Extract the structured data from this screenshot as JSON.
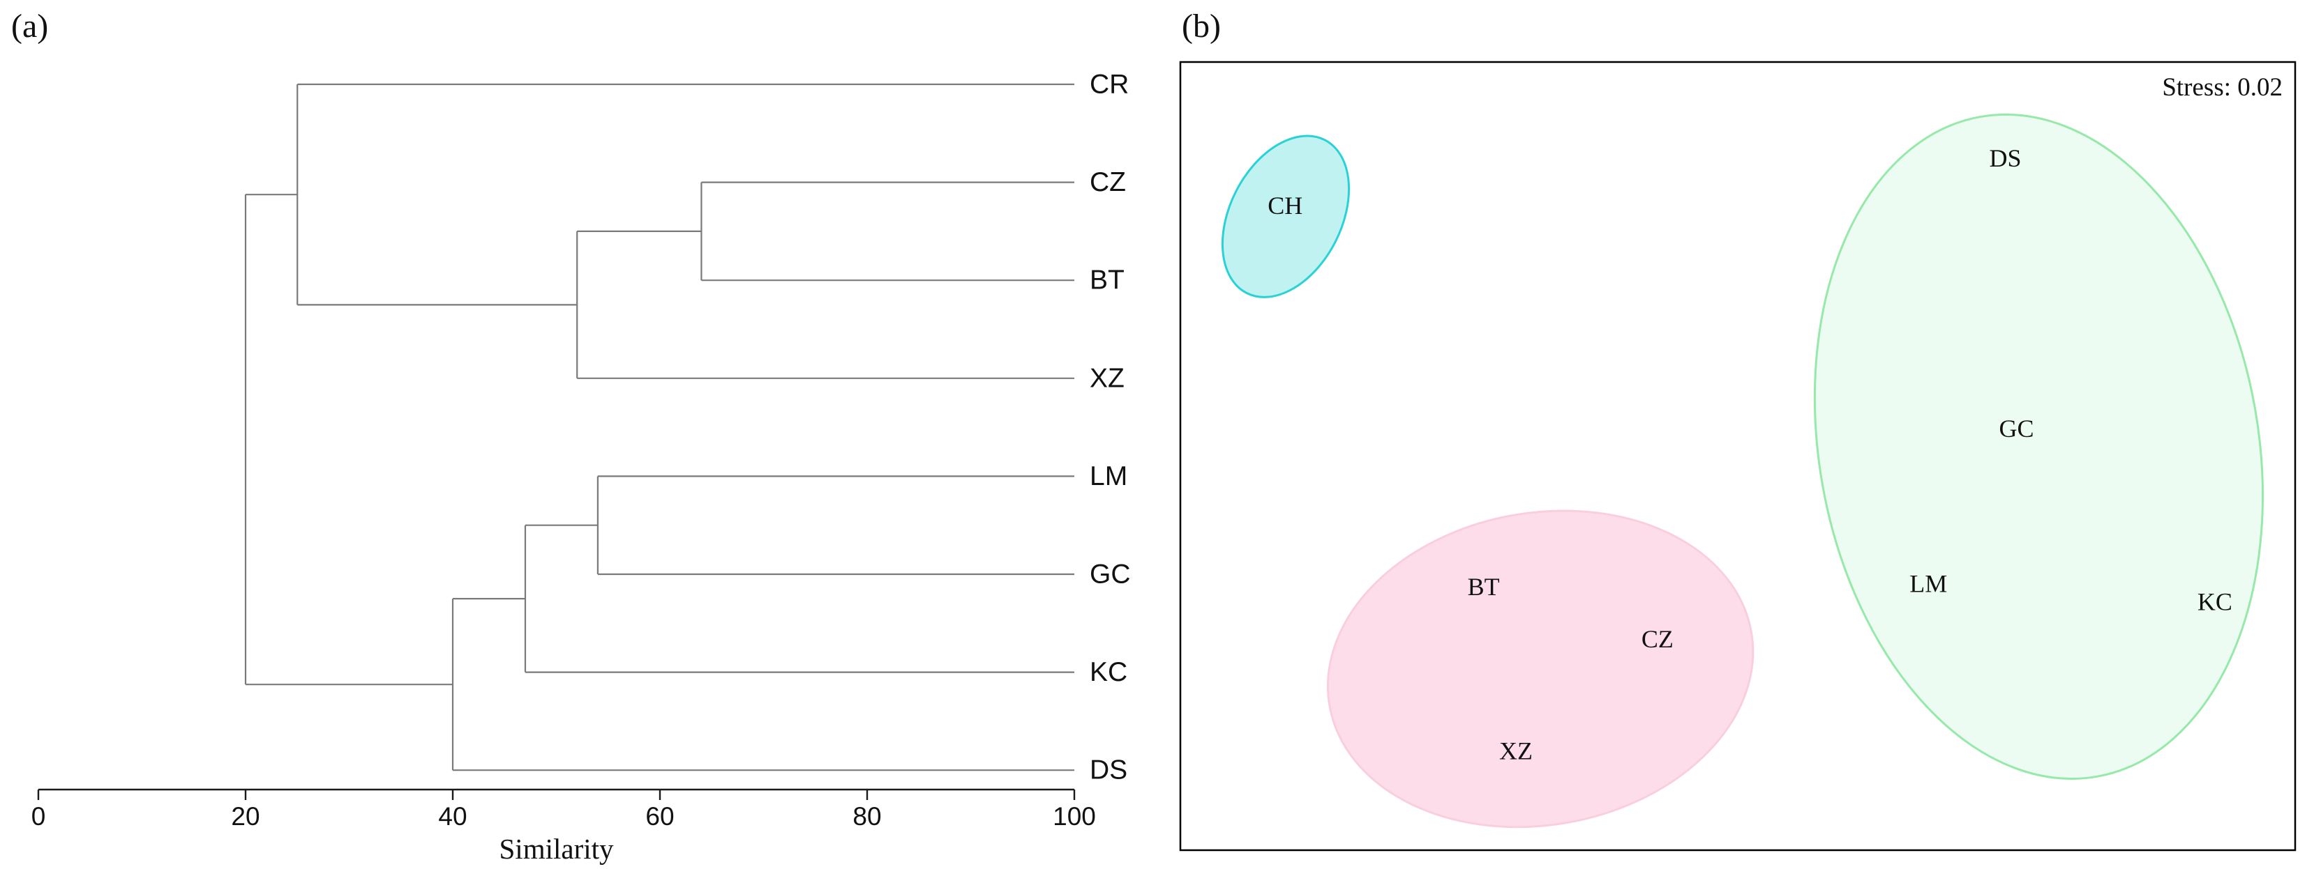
{
  "figure": {
    "panel_a_label": "(a)",
    "panel_b_label": "(b)"
  },
  "chart_data": [
    {
      "type": "dendrogram",
      "panel": "a",
      "orientation": "horizontal, leaves on right, root on left",
      "leaves": [
        "CR",
        "CZ",
        "BT",
        "XZ",
        "LM",
        "GC",
        "KC",
        "DS"
      ],
      "merges": [
        {
          "id": "n1",
          "children": [
            "CZ",
            "BT"
          ],
          "similarity": 64
        },
        {
          "id": "n2",
          "children": [
            "n1",
            "XZ"
          ],
          "similarity": 52
        },
        {
          "id": "n3",
          "children": [
            "CR",
            "n2"
          ],
          "similarity": 25
        },
        {
          "id": "n4",
          "children": [
            "LM",
            "GC"
          ],
          "similarity": 54
        },
        {
          "id": "n5",
          "children": [
            "n4",
            "KC"
          ],
          "similarity": 47
        },
        {
          "id": "n6",
          "children": [
            "n5",
            "DS"
          ],
          "similarity": 40
        },
        {
          "id": "n7",
          "children": [
            "n3",
            "n6"
          ],
          "similarity": 20
        }
      ],
      "xlabel": "Similarity",
      "x_range": [
        0,
        100
      ],
      "x_ticks": [
        0,
        20,
        40,
        60,
        80,
        100
      ],
      "line_color": "#7a7a7a",
      "axis_color": "#1a1a1a",
      "grid": false
    },
    {
      "type": "scatter",
      "panel": "b",
      "subtype": "NMDS ordination, text labels as markers, axes hidden",
      "annotation": "Stress: 0.02",
      "x_range": [
        0,
        1
      ],
      "y_range": [
        0,
        1
      ],
      "frame_color": "#000000",
      "label_color": "#111111",
      "points": [
        {
          "label": "CH",
          "x": 0.094,
          "y": 0.182
        },
        {
          "label": "DS",
          "x": 0.74,
          "y": 0.122
        },
        {
          "label": "GC",
          "x": 0.75,
          "y": 0.465
        },
        {
          "label": "LM",
          "x": 0.671,
          "y": 0.662
        },
        {
          "label": "KC",
          "x": 0.928,
          "y": 0.685
        },
        {
          "label": "BT",
          "x": 0.272,
          "y": 0.666
        },
        {
          "label": "CZ",
          "x": 0.428,
          "y": 0.732
        },
        {
          "label": "XZ",
          "x": 0.301,
          "y": 0.874
        }
      ],
      "groups": [
        {
          "name": "CH",
          "members": [
            "CH"
          ],
          "fill": "#bff2f0",
          "stroke": "#2ad2d6",
          "ellipse": {
            "cx": 0.0945,
            "cy": 0.196,
            "rx": 0.05,
            "ry": 0.109,
            "rotation": 27
          }
        },
        {
          "name": "BT-CZ-XZ",
          "members": [
            "BT",
            "CZ",
            "XZ"
          ],
          "fill": "#fcdde9",
          "stroke": "#f9cfe0",
          "ellipse": {
            "cx": 0.323,
            "cy": 0.77,
            "rx": 0.192,
            "ry": 0.198,
            "rotation": -10
          }
        },
        {
          "name": "DS-GC-LM-KC",
          "members": [
            "DS",
            "GC",
            "LM",
            "KC"
          ],
          "fill": "#edfcf3",
          "stroke": "#96e9a9",
          "ellipse": {
            "cx": 0.77,
            "cy": 0.488,
            "rx": 0.197,
            "ry": 0.425,
            "rotation": -10
          }
        }
      ]
    }
  ]
}
